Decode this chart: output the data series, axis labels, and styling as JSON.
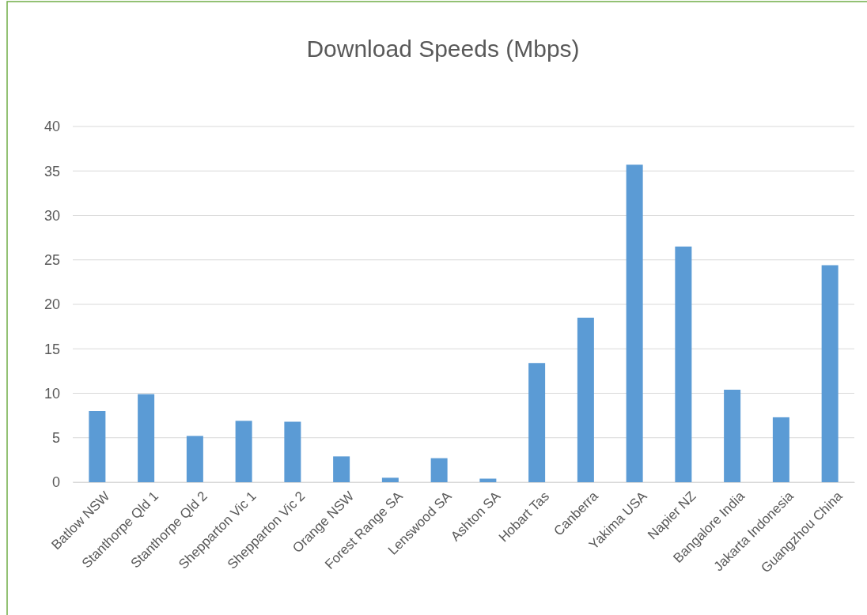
{
  "chart_data": {
    "type": "bar",
    "title": "Download Speeds (Mbps)",
    "categories": [
      "Batlow NSW",
      "Stanthorpe Qld 1",
      "Stanthorpe Qld 2",
      "Shepparton Vic 1",
      "Shepparton Vic 2",
      "Orange NSW",
      "Forest Range SA",
      "Lenswood SA",
      "Ashton SA",
      "Hobart Tas",
      "Canberra",
      "Yakima USA",
      "Napier NZ",
      "Bangalore India",
      "Jakarta Indonesia",
      "Guangzhou China"
    ],
    "values": [
      8.0,
      9.9,
      5.2,
      6.9,
      6.8,
      2.9,
      0.5,
      2.7,
      0.4,
      13.4,
      18.5,
      35.7,
      26.5,
      10.4,
      7.3,
      24.4
    ],
    "color": "#5b9bd5",
    "ylim": [
      0,
      40
    ],
    "yticks": [
      0,
      5,
      10,
      15,
      20,
      25,
      30,
      35,
      40
    ],
    "grid": "y"
  }
}
